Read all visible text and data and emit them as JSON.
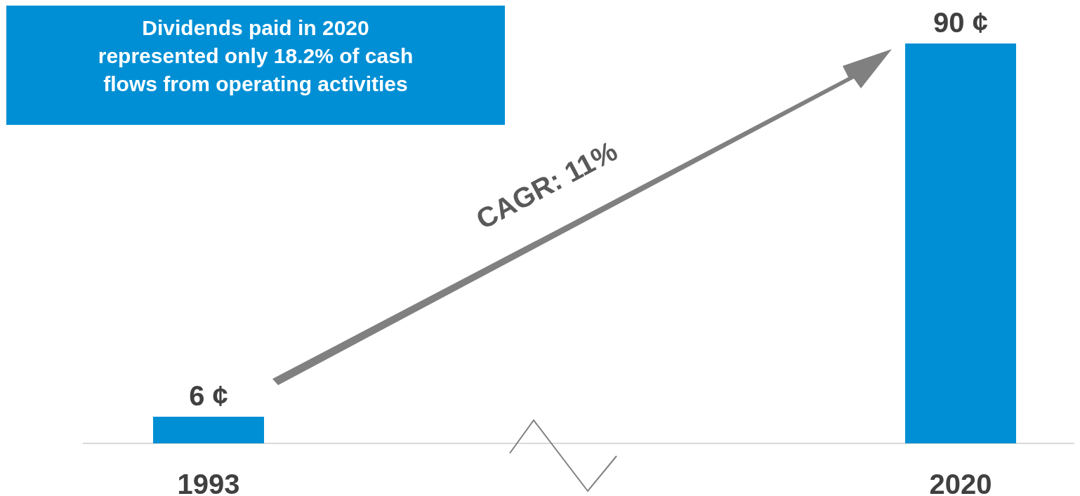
{
  "chart_data": {
    "type": "bar",
    "categories": [
      "1993",
      "2020"
    ],
    "values": [
      6,
      90
    ],
    "color": "#008fd5",
    "value_labels": [
      "6 ¢",
      "90 ¢"
    ],
    "annotations": [
      "Dividends paid in 2020 represented only 18.2% of cash flows from operating activities",
      "CAGR: 11%"
    ]
  }
}
